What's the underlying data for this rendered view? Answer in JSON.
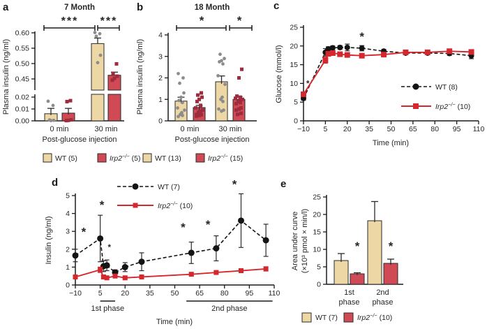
{
  "figure": {
    "panels": {
      "a": {
        "letter": "a"
      },
      "b": {
        "letter": "b"
      },
      "c": {
        "letter": "c"
      },
      "d": {
        "letter": "d"
      },
      "e": {
        "letter": "e"
      }
    },
    "colors": {
      "wt_bar": "#ecd7a5",
      "wt_bar_edge": "#2b2b2b",
      "ko_bar": "#cf4a54",
      "ko_bar_edge": "#2b2b2b",
      "wt_line": "#141414",
      "ko_line": "#d4282e",
      "wt_scatter": "#8c8c8c",
      "ko_scatter": "#9e2c3e",
      "axis": "#1a1a1a",
      "text": "#262626",
      "err": "#2b2b2b"
    }
  },
  "chart_data": [
    {
      "panel": "a",
      "type": "bar",
      "title": "7 Month",
      "ylabel": "Plasma insulin (ng/ml)",
      "xlabel": "Post-glucose injection",
      "categories": [
        "0 min",
        "30 min"
      ],
      "axis_break": {
        "lower_range": [
          0,
          0.02
        ],
        "lower_tick_values": [
          0,
          0.01,
          0.02
        ],
        "lower_tick_labels": [
          "0.00",
          "0.01",
          "0.02"
        ],
        "upper_range": [
          0.45,
          0.6
        ],
        "upper_tick_values": [
          0.45,
          0.5,
          0.55,
          0.6
        ],
        "upper_tick_labels": [
          "0.45",
          "0.50",
          "0.55",
          "0.60"
        ]
      },
      "series": [
        {
          "name": "WT (5)",
          "values": [
            0.006,
            0.565
          ],
          "errors": [
            0.0045,
            0.018
          ],
          "scatter": [
            [
              0.0165,
              0.013,
              0.0008,
              0.0004,
              0.0002
            ],
            [
              0.601,
              0.597,
              0.589,
              0.527,
              0.503
            ]
          ]
        },
        {
          "name": "Irp2−/− (5)",
          "values": [
            0.0065,
            0.462
          ],
          "errors": [
            0.004,
            0.01
          ],
          "scatter": [
            [
              0.017,
              0.0162,
              0.0008,
              0.0004,
              0.0002
            ],
            [
              0.499,
              0.468,
              0.459,
              0.452,
              0.446
            ]
          ]
        }
      ],
      "significance": [
        {
          "label": "***",
          "compare": "0 min vs 30 min"
        },
        {
          "label": "***",
          "compare": "WT vs Irp2−/− at 30 min"
        }
      ],
      "legend": [
        "WT (5)",
        "Irp2−/− (5)"
      ]
    },
    {
      "panel": "b",
      "type": "bar",
      "title": "18 Month",
      "ylabel": "Plasma insulin (ng/ml)",
      "xlabel": "Post-glucose injection",
      "categories": [
        "0 min",
        "30 min"
      ],
      "ylim": [
        0,
        4
      ],
      "ytick_values": [
        0,
        1,
        2,
        3,
        4
      ],
      "ytick_labels": [
        "0",
        "1",
        "2",
        "3",
        "4"
      ],
      "series": [
        {
          "name": "WT (13)",
          "values": [
            0.92,
            1.82
          ],
          "errors": [
            0.18,
            0.27
          ],
          "scatter": [
            [
              2.2,
              2.0,
              1.75,
              1.3,
              1.1,
              0.95,
              0.85,
              0.6,
              0.5,
              0.38,
              0.3,
              0.25,
              0.2
            ],
            [
              3.1,
              2.9,
              2.8,
              2.75,
              2.65,
              2.1,
              1.7,
              1.1,
              1.0,
              0.9,
              0.55,
              0.5,
              0.45
            ]
          ]
        },
        {
          "name": "Irp2−/− (15)",
          "values": [
            0.62,
            1.0
          ],
          "errors": [
            0.1,
            0.13
          ],
          "scatter": [
            [
              1.3,
              1.2,
              1.1,
              1.0,
              0.9,
              0.72,
              0.6,
              0.5,
              0.45,
              0.4,
              0.35,
              0.3,
              0.28,
              0.25,
              0.22
            ],
            [
              2.4,
              2.0,
              1.15,
              1.1,
              1.05,
              1.0,
              0.95,
              0.9,
              0.85,
              0.8,
              0.6,
              0.55,
              0.5,
              0.35,
              0.3
            ]
          ]
        }
      ],
      "significance": [
        {
          "label": "*",
          "compare": "0 min vs 30 min"
        },
        {
          "label": "*",
          "compare": "WT vs Irp2−/− at 30 min"
        }
      ],
      "legend": [
        "WT (13)",
        "Irp2−/− (15)"
      ]
    },
    {
      "panel": "c",
      "type": "line",
      "ylabel": "Glucose (mmol/l)",
      "xlabel": "Time (min)",
      "xlim": [
        -10,
        110
      ],
      "ylim": [
        0,
        25
      ],
      "xtick_values": [
        -10,
        5,
        20,
        35,
        50,
        65,
        80,
        95,
        110
      ],
      "xtick_labels": [
        "−10",
        "5",
        "20",
        "35",
        "50",
        "65",
        "80",
        "95",
        "110"
      ],
      "ytick_values": [
        0,
        5,
        10,
        15,
        20,
        25
      ],
      "ytick_labels": [
        "0",
        "5",
        "10",
        "15",
        "20",
        "25"
      ],
      "x": [
        -10,
        5,
        7,
        10,
        15,
        20,
        30,
        45,
        60,
        75,
        90,
        105
      ],
      "series": [
        {
          "name": "WT (8)",
          "style": "dashed-circle",
          "y": [
            6.0,
            18.3,
            19.2,
            19.5,
            19.6,
            19.6,
            19.4,
            18.6,
            18.1,
            18.1,
            18.0,
            17.4
          ],
          "err": [
            0.5,
            1.0,
            0.6,
            0.5,
            0.5,
            0.9,
            0.7,
            0.5,
            0.4,
            0.4,
            0.5,
            0.8
          ]
        },
        {
          "name": "Irp2−/− (10)",
          "style": "solid-square",
          "y": [
            7.1,
            16.2,
            17.9,
            18.1,
            17.8,
            17.6,
            17.4,
            17.7,
            18.3,
            18.3,
            18.6,
            18.4
          ],
          "err": [
            0.4,
            0.8,
            0.5,
            0.4,
            0.4,
            0.4,
            0.4,
            0.4,
            0.5,
            0.5,
            0.6,
            0.6
          ]
        }
      ],
      "stars": [
        {
          "x": -7,
          "y": 10.2,
          "label": "*",
          "size": "small"
        },
        {
          "x": 30,
          "y": 22.4,
          "label": "*",
          "size": "large"
        }
      ],
      "legend": [
        "WT (8)",
        "Irp2−/− (10)"
      ]
    },
    {
      "panel": "d",
      "type": "line",
      "ylabel": "Insulin (ng/ml)",
      "xlabel": "Time (min)",
      "xlim": [
        -10,
        110
      ],
      "ylim": [
        0,
        5
      ],
      "xtick_values": [
        -10,
        5,
        20,
        35,
        50,
        65,
        80,
        95,
        110
      ],
      "xtick_labels": [
        "−10",
        "5",
        "20",
        "35",
        "50",
        "65",
        "80",
        "95",
        "110"
      ],
      "ytick_values": [
        0,
        1,
        2,
        3,
        4,
        5
      ],
      "ytick_labels": [
        "0",
        "1",
        "2",
        "3",
        "4",
        "5"
      ],
      "x": [
        -10,
        5,
        7,
        9,
        14,
        20,
        30,
        60,
        75,
        90,
        105
      ],
      "series": [
        {
          "name": "WT (7)",
          "style": "dashed-circle",
          "y": [
            1.65,
            2.6,
            1.05,
            1.1,
            0.7,
            1.0,
            1.3,
            1.8,
            2.05,
            3.6,
            2.5
          ],
          "err": [
            0.35,
            1.3,
            0.3,
            0.3,
            0.15,
            0.25,
            0.5,
            0.6,
            0.7,
            1.5,
            0.9
          ]
        },
        {
          "name": "Irp2−/− (10)",
          "style": "solid-square",
          "y": [
            0.45,
            0.85,
            0.45,
            0.4,
            0.5,
            0.4,
            0.45,
            0.6,
            0.7,
            0.8,
            0.9
          ],
          "err": [
            0.05,
            0.15,
            0.08,
            0.05,
            0.05,
            0.05,
            0.05,
            0.06,
            0.08,
            0.1,
            0.12
          ]
        }
      ],
      "stars": [
        {
          "x": -5,
          "y": 2.95,
          "label": "*",
          "size": "large"
        },
        {
          "x": 6,
          "y": 4.45,
          "label": "*",
          "size": "large"
        },
        {
          "x": 10.5,
          "y": 2.15,
          "label": "*",
          "size": "small"
        },
        {
          "x": 55,
          "y": 3.2,
          "label": "*",
          "size": "large"
        },
        {
          "x": 70,
          "y": 3.35,
          "label": "*",
          "size": "large"
        },
        {
          "x": 86,
          "y": 5.6,
          "label": "*",
          "size": "large"
        }
      ],
      "phases": [
        {
          "label": "1st phase",
          "from": 5,
          "to": 14
        },
        {
          "label": "2nd phase",
          "from": 57,
          "to": 109
        }
      ],
      "legend": [
        "WT (7)",
        "Irp2−/− (10)"
      ]
    },
    {
      "panel": "e",
      "type": "bar",
      "ylabel_lines": [
        "Area under curve",
        "(×10³ pmol × min/l)"
      ],
      "categories": [
        [
          "1st",
          "phase"
        ],
        [
          "2nd",
          "phase"
        ]
      ],
      "ylim": [
        0,
        25
      ],
      "ytick_values": [
        0,
        5,
        10,
        15,
        20,
        25
      ],
      "ytick_labels": [
        "0",
        "5",
        "10",
        "15",
        "20",
        "25"
      ],
      "series": [
        {
          "name": "WT (7)",
          "values": [
            6.8,
            18.2
          ],
          "errors": [
            2.0,
            5.5
          ]
        },
        {
          "name": "Irp2−/− (10)",
          "values": [
            3.0,
            6.0
          ],
          "errors": [
            0.3,
            1.2
          ]
        }
      ],
      "stars": [
        {
          "over": "Irp2−/− 1st phase",
          "label": "*"
        },
        {
          "over": "Irp2−/− 2nd phase",
          "label": "*"
        }
      ],
      "legend": [
        "WT (7)",
        "Irp2−/− (10)"
      ]
    }
  ]
}
